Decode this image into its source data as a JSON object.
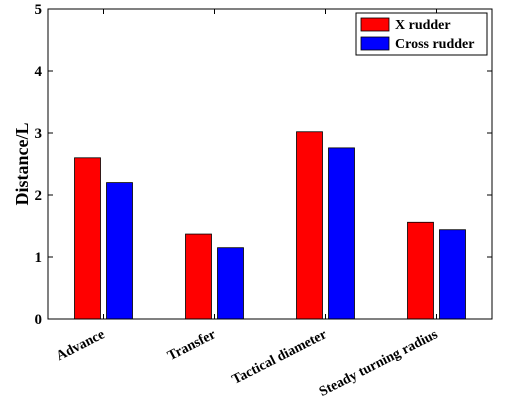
{
  "chart_data": {
    "type": "bar",
    "categories": [
      "Advance",
      "Transfer",
      "Tactical diameter",
      "Steady turning radius"
    ],
    "series": [
      {
        "name": "X rudder",
        "values": [
          2.6,
          1.37,
          3.02,
          1.56
        ],
        "color": "#ff0000"
      },
      {
        "name": "Cross rudder",
        "values": [
          2.2,
          1.15,
          2.76,
          1.44
        ],
        "color": "#0000ff"
      }
    ],
    "ylabel": "Distance/L",
    "xlabel": "",
    "ylim": [
      0,
      5
    ],
    "yticks": [
      "0",
      "1",
      "2",
      "3",
      "4",
      "5"
    ],
    "legend_position": "top-right",
    "grid": false
  }
}
